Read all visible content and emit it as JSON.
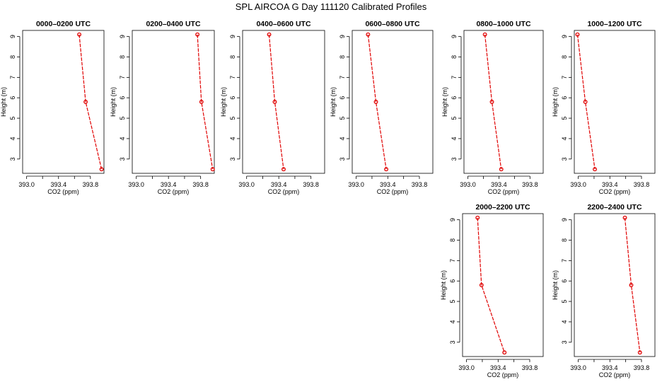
{
  "title": "SPL AIRCOA G  Day 111120  Calibrated Profiles",
  "colors": {
    "series": "#e00000",
    "axes": "#000000"
  },
  "chart_data": [
    {
      "type": "line",
      "title": "0000–0200 UTC",
      "xlabel": "CO2 (ppm)",
      "ylabel": "Height (m)",
      "xlim": [
        392.95,
        393.97
      ],
      "ylim": [
        2.3,
        9.3
      ],
      "xticks": [
        "393.0",
        "393.4",
        "393.8"
      ],
      "yticks": [
        "3",
        "4",
        "5",
        "6",
        "7",
        "8",
        "9"
      ],
      "x": [
        393.66,
        393.74,
        393.94
      ],
      "y": [
        9.1,
        5.8,
        2.5
      ]
    },
    {
      "type": "line",
      "title": "0200–0400 UTC",
      "xlabel": "CO2 (ppm)",
      "ylabel": "Height (m)",
      "xlim": [
        392.95,
        393.97
      ],
      "ylim": [
        2.3,
        9.3
      ],
      "xticks": [
        "393.0",
        "393.4",
        "393.8"
      ],
      "yticks": [
        "3",
        "4",
        "5",
        "6",
        "7",
        "8",
        "9"
      ],
      "x": [
        393.76,
        393.81,
        393.95
      ],
      "y": [
        9.1,
        5.8,
        2.5
      ]
    },
    {
      "type": "line",
      "title": "0400–0600 UTC",
      "xlabel": "CO2 (ppm)",
      "ylabel": "Height (m)",
      "xlim": [
        392.95,
        393.97
      ],
      "ylim": [
        2.3,
        9.3
      ],
      "xticks": [
        "393.0",
        "393.4",
        "393.8"
      ],
      "yticks": [
        "3",
        "4",
        "5",
        "6",
        "7",
        "8",
        "9"
      ],
      "x": [
        393.28,
        393.35,
        393.46
      ],
      "y": [
        9.1,
        5.8,
        2.5
      ]
    },
    {
      "type": "line",
      "title": "0600–0800 UTC",
      "xlabel": "CO2 (ppm)",
      "ylabel": "Height (m)",
      "xlim": [
        392.95,
        393.97
      ],
      "ylim": [
        2.3,
        9.3
      ],
      "xticks": [
        "393.0",
        "393.4",
        "393.8"
      ],
      "yticks": [
        "3",
        "4",
        "5",
        "6",
        "7",
        "8",
        "9"
      ],
      "x": [
        393.15,
        393.25,
        393.38
      ],
      "y": [
        9.1,
        5.8,
        2.5
      ]
    },
    {
      "type": "line",
      "title": "0800–1000 UTC",
      "xlabel": "CO2 (ppm)",
      "ylabel": "Height (m)",
      "xlim": [
        392.95,
        393.97
      ],
      "ylim": [
        2.3,
        9.3
      ],
      "xticks": [
        "393.0",
        "393.4",
        "393.8"
      ],
      "yticks": [
        "3",
        "4",
        "5",
        "6",
        "7",
        "8",
        "9"
      ],
      "x": [
        393.22,
        393.31,
        393.43
      ],
      "y": [
        9.1,
        5.8,
        2.5
      ]
    },
    {
      "type": "line",
      "title": "1000–1200 UTC",
      "xlabel": "CO2 (ppm)",
      "ylabel": "Height (m)",
      "xlim": [
        392.95,
        393.97
      ],
      "ylim": [
        2.3,
        9.3
      ],
      "xticks": [
        "393.0",
        "393.4",
        "393.8"
      ],
      "yticks": [
        "3",
        "4",
        "5",
        "6",
        "7",
        "8",
        "9"
      ],
      "x": [
        392.99,
        393.09,
        393.21
      ],
      "y": [
        9.1,
        5.8,
        2.5
      ]
    },
    {
      "type": "line",
      "title": "2000–2200 UTC",
      "xlabel": "CO2 (ppm)",
      "ylabel": "Height (m)",
      "xlim": [
        392.95,
        393.97
      ],
      "ylim": [
        2.3,
        9.3
      ],
      "xticks": [
        "393.0",
        "393.4",
        "393.8"
      ],
      "yticks": [
        "3",
        "4",
        "5",
        "6",
        "7",
        "8",
        "9"
      ],
      "x": [
        393.14,
        393.19,
        393.48
      ],
      "y": [
        9.1,
        5.8,
        2.5
      ]
    },
    {
      "type": "line",
      "title": "2200–2400 UTC",
      "xlabel": "CO2 (ppm)",
      "ylabel": "Height (m)",
      "xlim": [
        392.95,
        393.97
      ],
      "ylim": [
        2.3,
        9.3
      ],
      "xticks": [
        "393.0",
        "393.4",
        "393.8"
      ],
      "yticks": [
        "3",
        "4",
        "5",
        "6",
        "7",
        "8",
        "9"
      ],
      "x": [
        393.59,
        393.67,
        393.78
      ],
      "y": [
        9.1,
        5.8,
        2.5
      ]
    }
  ]
}
